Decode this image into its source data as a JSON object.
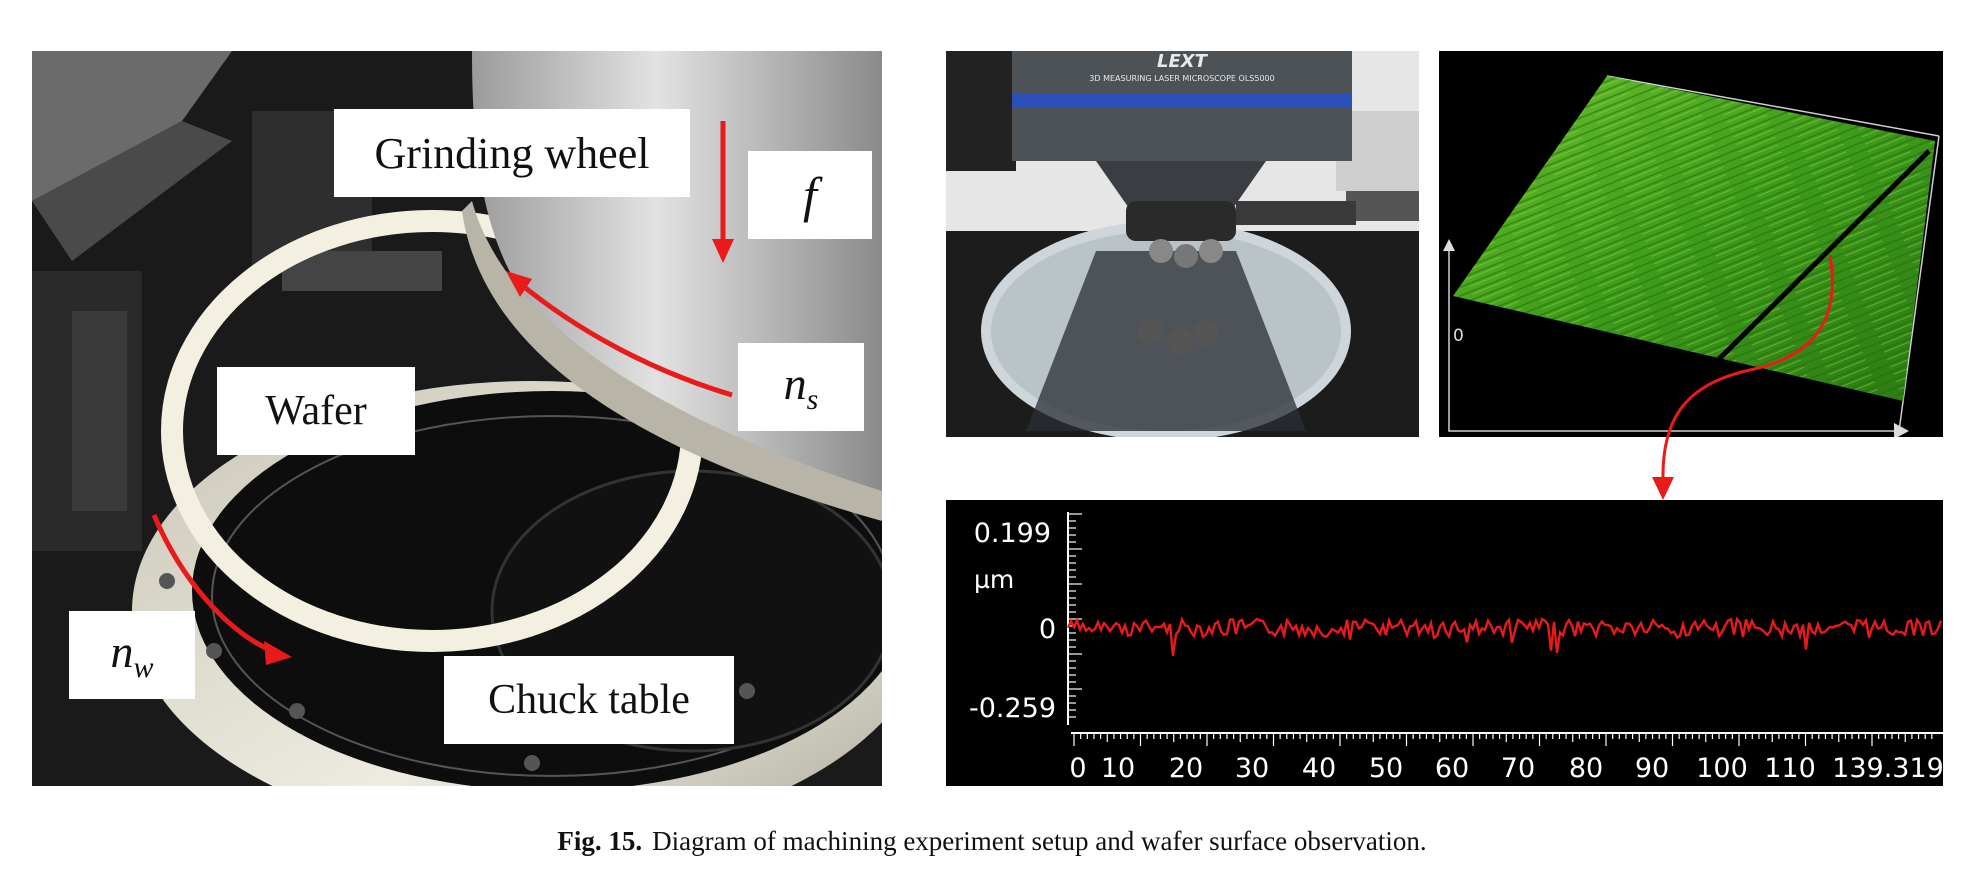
{
  "figure": {
    "left_panel": {
      "labels": {
        "grinding_wheel": "Grinding wheel",
        "wafer": "Wafer",
        "chuck_table": "Chuck table",
        "feed": "f",
        "spindle_speed": "n",
        "spindle_speed_sub": "s",
        "wafer_speed": "n",
        "wafer_speed_sub": "w"
      },
      "colors": {
        "arrow": "#e81a1a",
        "label_bg": "#ffffff"
      }
    },
    "microscope_panel": {
      "brand": "LEXT",
      "model_text": "3D MEASURING LASER MICROSCOPE OLS5000"
    },
    "surface_panel": {
      "axis_zero": "0",
      "colors": {
        "surface": "#3f9c1a",
        "line": "#000000",
        "arrow": "#e81a1a"
      }
    },
    "profile_panel": {
      "y_ticks": [
        "0.199",
        "µm",
        "0",
        "-0.259"
      ],
      "x_ticks": [
        "0",
        "10",
        "20",
        "30",
        "40",
        "50",
        "60",
        "70",
        "80",
        "90",
        "100",
        "110",
        "139.319"
      ],
      "colors": {
        "trace": "#e81a1a",
        "axis": "#ffffff",
        "background": "#000000"
      }
    },
    "caption": {
      "label": "Fig. 15.",
      "text": "Diagram of machining experiment setup and wafer surface observation."
    }
  }
}
